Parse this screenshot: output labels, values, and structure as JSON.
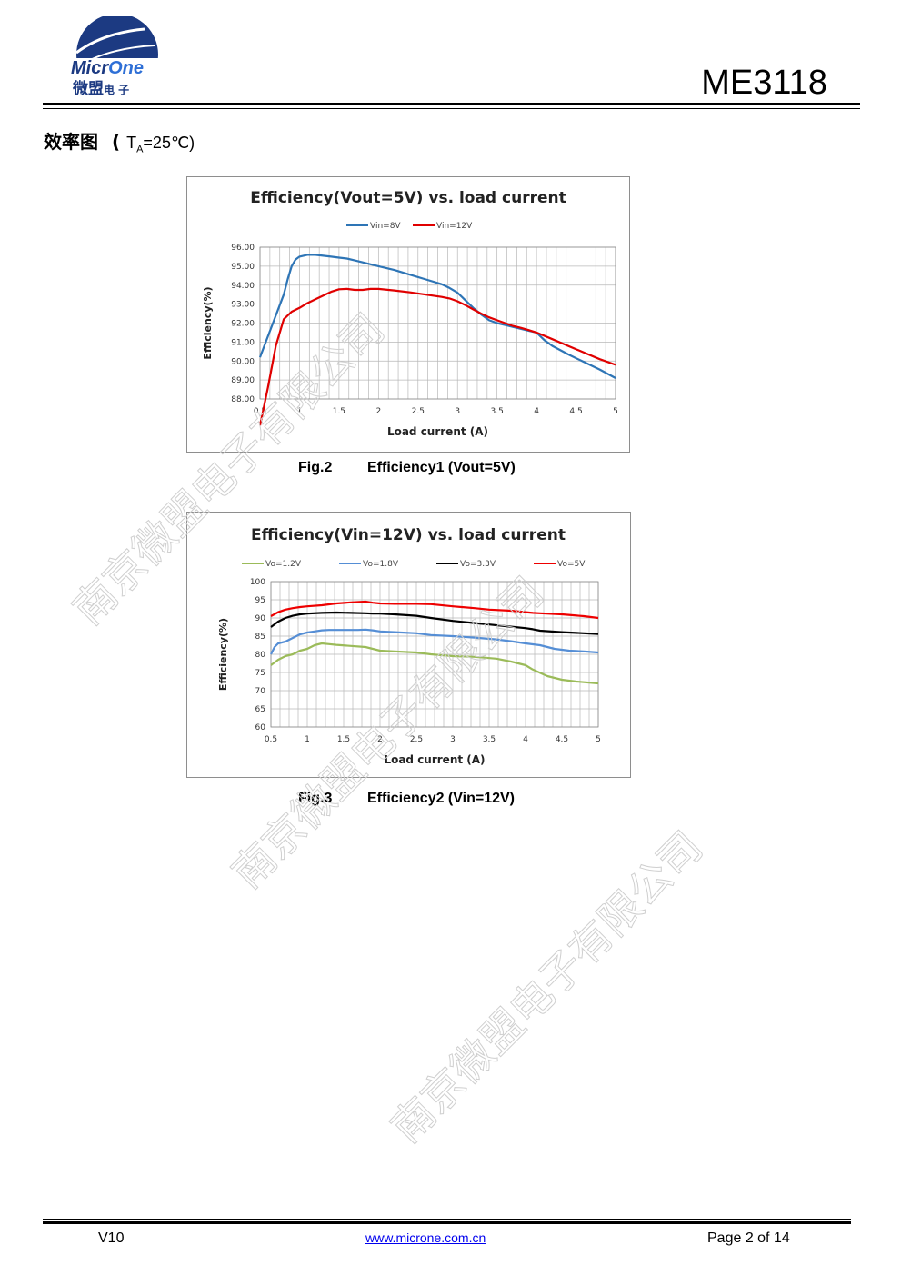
{
  "header": {
    "logo_text": "MicrOne",
    "logo_cn": "微盟电子",
    "model": "ME3118"
  },
  "section": {
    "title_cn": "效率图",
    "condition_prefix": "T",
    "condition_sub": "A",
    "condition_suffix": "=25℃)"
  },
  "watermark_text": "南京微盟电子有限公司",
  "figures": [
    {
      "label": "Fig.2",
      "caption": "Efficiency1 (Vout=5V)"
    },
    {
      "label": "Fig.3",
      "caption": "Efficiency2 (Vin=12V)"
    }
  ],
  "chart_data": [
    {
      "type": "line",
      "title": "Efficiency(Vout=5V) vs. load current",
      "xlabel": "Load current (A)",
      "ylabel": "Efficiency(%)",
      "xlim": [
        0.5,
        5
      ],
      "ylim": [
        88,
        96
      ],
      "xticks": [
        "0.5",
        "1",
        "1.5",
        "2",
        "2.5",
        "3",
        "3.5",
        "4",
        "4.5",
        "5"
      ],
      "yticks": [
        "88.00",
        "89.00",
        "90.00",
        "91.00",
        "92.00",
        "93.00",
        "94.00",
        "95.00",
        "96.00"
      ],
      "grid": true,
      "legend_position": "top",
      "series": [
        {
          "name": "Vin=8V",
          "color": "#2e75b6",
          "x": [
            0.5,
            0.6,
            0.7,
            0.8,
            0.85,
            0.9,
            0.95,
            1.0,
            1.1,
            1.2,
            1.3,
            1.4,
            1.5,
            1.6,
            1.7,
            1.8,
            1.9,
            2.0,
            2.2,
            2.4,
            2.6,
            2.8,
            2.9,
            3.0,
            3.1,
            3.2,
            3.3,
            3.4,
            3.5,
            3.6,
            3.7,
            3.8,
            3.9,
            4.0,
            4.1,
            4.2,
            4.4,
            4.6,
            4.8,
            5.0
          ],
          "y": [
            90.2,
            91.3,
            92.4,
            93.5,
            94.3,
            95.0,
            95.35,
            95.5,
            95.6,
            95.6,
            95.55,
            95.5,
            95.45,
            95.4,
            95.3,
            95.2,
            95.1,
            95.0,
            94.8,
            94.55,
            94.3,
            94.05,
            93.85,
            93.6,
            93.2,
            92.8,
            92.45,
            92.15,
            92.0,
            91.9,
            91.8,
            91.7,
            91.6,
            91.5,
            91.1,
            90.8,
            90.35,
            89.95,
            89.55,
            89.1
          ]
        },
        {
          "name": "Vin=12V",
          "color": "#e00000",
          "x": [
            0.5,
            0.6,
            0.7,
            0.8,
            0.9,
            1.0,
            1.1,
            1.2,
            1.3,
            1.4,
            1.5,
            1.6,
            1.7,
            1.8,
            1.9,
            2.0,
            2.2,
            2.4,
            2.6,
            2.8,
            2.9,
            3.0,
            3.1,
            3.2,
            3.3,
            3.4,
            3.5,
            3.6,
            3.7,
            3.8,
            3.9,
            4.0,
            4.2,
            4.4,
            4.6,
            4.8,
            5.0
          ],
          "y": [
            86.6,
            88.6,
            90.8,
            92.2,
            92.6,
            92.8,
            93.05,
            93.25,
            93.45,
            93.65,
            93.78,
            93.8,
            93.75,
            93.75,
            93.8,
            93.8,
            93.72,
            93.62,
            93.5,
            93.38,
            93.3,
            93.15,
            92.95,
            92.72,
            92.5,
            92.3,
            92.15,
            92.0,
            91.85,
            91.75,
            91.63,
            91.5,
            91.15,
            90.8,
            90.45,
            90.1,
            89.8
          ]
        }
      ]
    },
    {
      "type": "line",
      "title": "Efficiency(Vin=12V) vs. load current",
      "xlabel": "Load current (A)",
      "ylabel": "Efficiency(%)",
      "xlim": [
        0.5,
        5
      ],
      "ylim": [
        60,
        100
      ],
      "xticks": [
        "0.5",
        "1",
        "1.5",
        "2",
        "2.5",
        "3",
        "3.5",
        "4",
        "4.5",
        "5"
      ],
      "yticks": [
        "60",
        "65",
        "70",
        "75",
        "80",
        "85",
        "90",
        "95",
        "100"
      ],
      "grid": true,
      "legend_position": "top",
      "series": [
        {
          "name": "Vo=1.2V",
          "color": "#9bbb59",
          "x": [
            0.5,
            0.6,
            0.7,
            0.8,
            0.9,
            1.0,
            1.1,
            1.2,
            1.3,
            1.4,
            1.6,
            1.8,
            1.9,
            2.0,
            2.2,
            2.5,
            2.7,
            3.0,
            3.3,
            3.6,
            3.8,
            4.0,
            4.1,
            4.3,
            4.5,
            4.7,
            5.0
          ],
          "y": [
            77.0,
            78.5,
            79.5,
            80.0,
            81.0,
            81.5,
            82.5,
            83.0,
            82.8,
            82.6,
            82.3,
            82.0,
            81.5,
            81.0,
            80.8,
            80.5,
            80.0,
            79.5,
            79.3,
            78.8,
            78.0,
            77.0,
            75.8,
            74.0,
            73.0,
            72.5,
            72.0
          ]
        },
        {
          "name": "Vo=1.8V",
          "color": "#558ed5",
          "x": [
            0.5,
            0.55,
            0.6,
            0.7,
            0.8,
            0.9,
            1.0,
            1.1,
            1.2,
            1.3,
            1.5,
            1.7,
            1.8,
            1.9,
            2.0,
            2.2,
            2.5,
            2.7,
            3.0,
            3.3,
            3.6,
            3.8,
            4.0,
            4.2,
            4.4,
            4.6,
            4.8,
            5.0
          ],
          "y": [
            80.0,
            82.0,
            83.0,
            83.5,
            84.5,
            85.5,
            86.0,
            86.3,
            86.6,
            86.7,
            86.7,
            86.7,
            86.8,
            86.6,
            86.3,
            86.1,
            85.8,
            85.3,
            85.0,
            84.6,
            84.1,
            83.6,
            83.0,
            82.5,
            81.5,
            81.0,
            80.8,
            80.5
          ]
        },
        {
          "name": "Vo=3.3V",
          "color": "#000000",
          "x": [
            0.5,
            0.6,
            0.7,
            0.8,
            0.9,
            1.0,
            1.2,
            1.4,
            1.6,
            1.8,
            1.9,
            2.0,
            2.2,
            2.5,
            2.7,
            3.0,
            3.3,
            3.5,
            3.8,
            4.0,
            4.1,
            4.2,
            4.5,
            4.8,
            5.0
          ],
          "y": [
            87.5,
            89.0,
            90.0,
            90.6,
            91.0,
            91.2,
            91.4,
            91.5,
            91.4,
            91.3,
            91.2,
            91.2,
            91.0,
            90.6,
            90.0,
            89.2,
            88.6,
            88.2,
            87.6,
            87.2,
            86.9,
            86.5,
            86.1,
            85.8,
            85.6
          ]
        },
        {
          "name": "Vo=5V",
          "color": "#ee0000",
          "x": [
            0.5,
            0.6,
            0.7,
            0.8,
            0.9,
            1.0,
            1.2,
            1.4,
            1.6,
            1.8,
            1.9,
            2.0,
            2.2,
            2.5,
            2.7,
            3.0,
            3.3,
            3.5,
            3.8,
            4.0,
            4.1,
            4.2,
            4.5,
            4.8,
            5.0
          ],
          "y": [
            90.5,
            91.6,
            92.3,
            92.7,
            93.0,
            93.2,
            93.5,
            94.0,
            94.3,
            94.5,
            94.2,
            94.0,
            93.9,
            93.9,
            93.8,
            93.2,
            92.7,
            92.3,
            92.0,
            91.6,
            91.4,
            91.3,
            91.0,
            90.5,
            90.0
          ]
        }
      ]
    }
  ],
  "footer": {
    "version": "V10",
    "url": "www.microne.com.cn",
    "page": "Page 2 of 14"
  }
}
